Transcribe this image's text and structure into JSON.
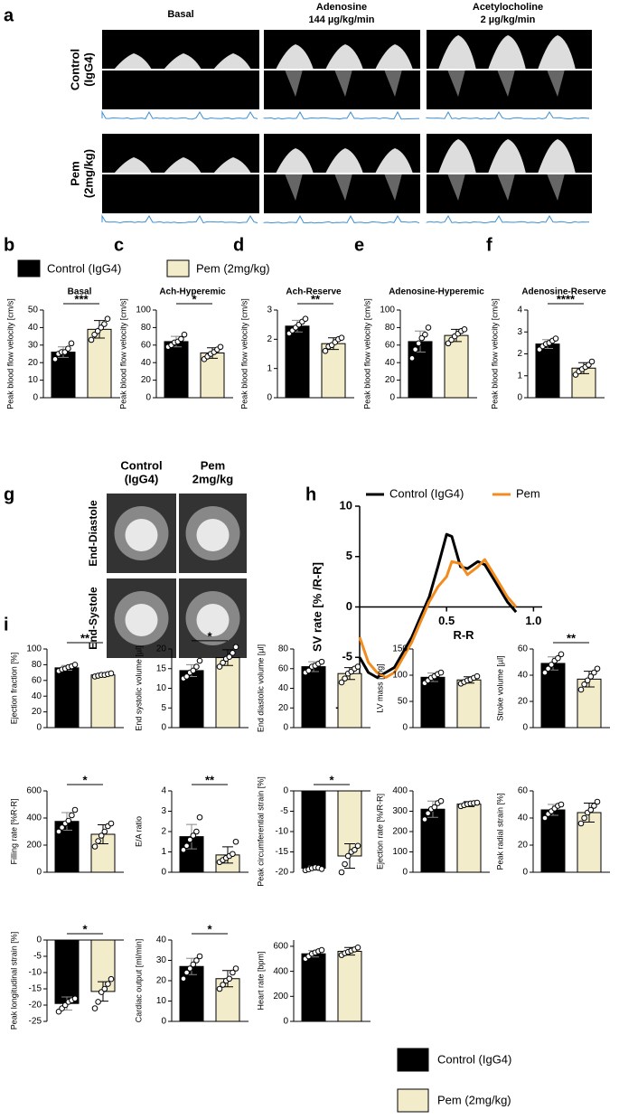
{
  "panels": [
    "a",
    "b",
    "c",
    "d",
    "e",
    "f",
    "g",
    "h",
    "i"
  ],
  "panel_a": {
    "columns": [
      [
        "Basal"
      ],
      [
        "Adenosine",
        "144 µg/kg/min"
      ],
      [
        "Acetylocholine",
        "2 µg/kg/min"
      ]
    ],
    "rows": [
      [
        "Control",
        "(IgG4)"
      ],
      [
        "Pem",
        "(2mg/kg)"
      ]
    ]
  },
  "panel_g": {
    "columns": [
      [
        "Control",
        "(IgG4)"
      ],
      [
        "Pem",
        "2mg/kg"
      ]
    ],
    "rows": [
      "End-Diastole",
      "End-Systole"
    ]
  },
  "legend": {
    "items": [
      {
        "name": "Control (IgG4)",
        "color": "#000000"
      },
      {
        "name": "Pem (2mg/kg)",
        "color": "#f3ecca"
      }
    ]
  },
  "chart_data": [
    {
      "type": "bar",
      "title": "Basal",
      "ylabel": "Peak blood flow velocity [cm/s]",
      "values": [
        26,
        39
      ],
      "errors": [
        3,
        5
      ],
      "points": [
        [
          22,
          25,
          26,
          26,
          28,
          31
        ],
        [
          33,
          36,
          38,
          40,
          42,
          45
        ]
      ],
      "significance": "***",
      "ylim": [
        0,
        50
      ],
      "yticks": [
        0,
        10,
        20,
        30,
        40,
        50
      ]
    },
    {
      "type": "bar",
      "title": "Ach-Hyperemic",
      "ylabel": "Peak blood flow velocity [cm/s]",
      "values": [
        64,
        51
      ],
      "errors": [
        6,
        6
      ],
      "points": [
        [
          58,
          60,
          63,
          64,
          67,
          72
        ],
        [
          44,
          47,
          50,
          52,
          55,
          58
        ]
      ],
      "significance": "*",
      "ylim": [
        0,
        100
      ],
      "yticks": [
        0,
        20,
        40,
        60,
        80,
        100
      ]
    },
    {
      "type": "bar",
      "title": "Ach-Reserve",
      "ylabel": "Peak blood flow velocity [cm/s]",
      "values": [
        2.45,
        1.85
      ],
      "errors": [
        0.2,
        0.2
      ],
      "points": [
        [
          2.2,
          2.3,
          2.4,
          2.5,
          2.6,
          2.7
        ],
        [
          1.6,
          1.75,
          1.8,
          1.9,
          2.0,
          2.05
        ]
      ],
      "significance": "**",
      "ylim": [
        0,
        3
      ],
      "yticks": [
        0,
        1,
        2,
        3
      ]
    },
    {
      "type": "bar",
      "title": "Adenosine-Hyperemic",
      "ylabel": "Peak blood flow velocity [cm/s]",
      "values": [
        64,
        71
      ],
      "errors": [
        12,
        7
      ],
      "points": [
        [
          45,
          55,
          62,
          68,
          72,
          80
        ],
        [
          62,
          66,
          70,
          73,
          76,
          78
        ]
      ],
      "ylim": [
        0,
        100
      ],
      "yticks": [
        0,
        20,
        40,
        60,
        80,
        100
      ]
    },
    {
      "type": "bar",
      "title": "Adenosine-Reserve",
      "ylabel": "Peak blood flow velocity [cm/s]",
      "values": [
        2.45,
        1.35
      ],
      "errors": [
        0.2,
        0.25
      ],
      "points": [
        [
          2.2,
          2.35,
          2.45,
          2.5,
          2.6,
          2.7
        ],
        [
          1.05,
          1.2,
          1.3,
          1.4,
          1.5,
          1.65
        ]
      ],
      "significance": "****",
      "ylim": [
        0,
        4
      ],
      "yticks": [
        0,
        1,
        2,
        3,
        4
      ]
    },
    {
      "type": "line",
      "ylabel": "SV rate [% /R-R]",
      "xlabel": "R-R",
      "x": [
        0,
        0.05,
        0.1,
        0.15,
        0.2,
        0.25,
        0.3,
        0.35,
        0.4,
        0.45,
        0.5,
        0.53,
        0.58,
        0.62,
        0.68,
        0.72,
        0.78,
        0.85,
        0.9
      ],
      "series": [
        {
          "name": "Control (IgG4)",
          "color": "#000000",
          "values": [
            -5,
            -6.5,
            -7,
            -6.5,
            -6,
            -4.5,
            -3,
            -1,
            1,
            4,
            7.2,
            7,
            4,
            3.8,
            4.5,
            4.2,
            2.5,
            0.5,
            -0.5
          ]
        },
        {
          "name": "Pem",
          "color": "#f28c1e",
          "values": [
            -3,
            -5.5,
            -6.5,
            -7,
            -6.5,
            -5,
            -3.5,
            -1.5,
            0.5,
            2,
            3,
            4.5,
            4.3,
            3.2,
            4,
            4.7,
            3,
            1,
            0
          ]
        }
      ],
      "xlim": [
        0,
        1.05
      ],
      "xticks": [
        0.5,
        {
          "value": 1,
          "label": "1.0"
        }
      ],
      "ylim": [
        -10,
        10
      ],
      "yticks": [
        -10,
        -5,
        0,
        5,
        10
      ]
    },
    {
      "type": "bar",
      "ylabel": "Ejection fraction [%]",
      "values": [
        76,
        67
      ],
      "errors": [
        3,
        2
      ],
      "points": [
        [
          72,
          74,
          75,
          77,
          78,
          80
        ],
        [
          65,
          66,
          67,
          67,
          68,
          69
        ]
      ],
      "significance": "**",
      "ylim": [
        0,
        100
      ],
      "yticks": [
        0,
        20,
        40,
        60,
        80,
        100
      ]
    },
    {
      "type": "bar",
      "ylabel": "End systolic volume [µl]",
      "values": [
        14.5,
        17.8
      ],
      "errors": [
        1.5,
        2
      ],
      "points": [
        [
          12.5,
          13,
          14,
          14.5,
          15.5,
          17
        ],
        [
          15.5,
          16.5,
          17.5,
          18,
          19,
          20.5
        ]
      ],
      "significance": "*",
      "ylim": [
        0,
        20
      ],
      "yticks": [
        0,
        5,
        10,
        15,
        20
      ]
    },
    {
      "type": "bar",
      "ylabel": "End diastolic volume [µl]",
      "values": [
        62,
        55
      ],
      "errors": [
        5,
        6
      ],
      "points": [
        [
          56,
          58,
          62,
          63,
          65,
          67
        ],
        [
          46,
          50,
          55,
          57,
          60,
          62
        ]
      ],
      "ylim": [
        0,
        80
      ],
      "yticks": [
        0,
        20,
        40,
        60,
        80
      ]
    },
    {
      "type": "bar",
      "ylabel": "LV mass [mg]",
      "values": [
        96,
        91
      ],
      "errors": [
        8,
        6
      ],
      "points": [
        [
          85,
          90,
          95,
          98,
          102,
          105
        ],
        [
          84,
          87,
          90,
          92,
          95,
          98
        ]
      ],
      "ylim": [
        0,
        150
      ],
      "yticks": [
        0,
        50,
        100,
        150
      ]
    },
    {
      "type": "bar",
      "ylabel": "Stroke volume [µl]",
      "values": [
        49,
        37
      ],
      "errors": [
        5,
        6
      ],
      "points": [
        [
          42,
          45,
          48,
          51,
          53,
          56
        ],
        [
          29,
          33,
          36,
          39,
          42,
          45
        ]
      ],
      "significance": "**",
      "ylim": [
        0,
        60
      ],
      "yticks": [
        0,
        20,
        40,
        60
      ]
    },
    {
      "type": "bar",
      "ylabel": "Filling rate [%R-R]",
      "values": [
        375,
        280
      ],
      "errors": [
        65,
        70
      ],
      "points": [
        [
          300,
          330,
          360,
          380,
          420,
          460
        ],
        [
          190,
          230,
          270,
          300,
          340,
          360
        ]
      ],
      "significance": "*",
      "ylim": [
        0,
        600
      ],
      "yticks": [
        0,
        200,
        400,
        600
      ]
    },
    {
      "type": "bar",
      "ylabel": "E/A ratio",
      "values": [
        1.75,
        0.85
      ],
      "errors": [
        0.6,
        0.4
      ],
      "points": [
        [
          1.1,
          1.3,
          1.6,
          1.8,
          2.0,
          2.7
        ],
        [
          0.5,
          0.6,
          0.7,
          0.8,
          0.9,
          1.5
        ]
      ],
      "significance": "**",
      "ylim": [
        0,
        4
      ],
      "yticks": [
        0,
        1,
        2,
        3,
        4
      ]
    },
    {
      "type": "bar",
      "ylabel": "Peak circumferential strain [%]",
      "values": [
        -19,
        -16
      ],
      "errors": [
        0.5,
        3
      ],
      "points": [
        [
          -19.5,
          -19.3,
          -19,
          -18.8,
          -18.9,
          -19.2
        ],
        [
          -20,
          -18,
          -16,
          -15,
          -14.5,
          -13.5
        ]
      ],
      "significance": "*",
      "ylim": [
        -20,
        0
      ],
      "yticks": [
        -20,
        -15,
        -10,
        -5,
        0
      ]
    },
    {
      "type": "bar",
      "ylabel": "Ejection rate [%/R-R]",
      "values": [
        310,
        335
      ],
      "errors": [
        40,
        12
      ],
      "points": [
        [
          260,
          290,
          310,
          320,
          340,
          350
        ],
        [
          325,
          330,
          335,
          338,
          340,
          342
        ]
      ],
      "ylim": [
        0,
        400
      ],
      "yticks": [
        0,
        100,
        200,
        300,
        400
      ]
    },
    {
      "type": "bar",
      "ylabel": "Peak radial strain [%]",
      "values": [
        46,
        44
      ],
      "errors": [
        4,
        7
      ],
      "points": [
        [
          40,
          43,
          45,
          47,
          49,
          50
        ],
        [
          36,
          40,
          44,
          46,
          49,
          52
        ]
      ],
      "ylim": [
        0,
        60
      ],
      "yticks": [
        0,
        20,
        40,
        60
      ]
    },
    {
      "type": "bar",
      "ylabel": "Peak longitudinal strain [%]",
      "values": [
        -19.5,
        -15.8
      ],
      "errors": [
        2,
        3
      ],
      "points": [
        [
          -22,
          -21,
          -20,
          -19,
          -18.5,
          -18
        ],
        [
          -21,
          -19,
          -16,
          -15,
          -13.5,
          -12
        ]
      ],
      "significance": "*",
      "ylim": [
        -25,
        0
      ],
      "yticks": [
        -25,
        -20,
        -15,
        -10,
        -5,
        0
      ]
    },
    {
      "type": "bar",
      "ylabel": "Cardiac output [ml/min]",
      "values": [
        27,
        21
      ],
      "errors": [
        4,
        4
      ],
      "points": [
        [
          21,
          24,
          26,
          28,
          30,
          32
        ],
        [
          16,
          18,
          20,
          21,
          24,
          26
        ]
      ],
      "significance": "*",
      "ylim": [
        0,
        40
      ],
      "yticks": [
        0,
        10,
        20,
        30,
        40
      ]
    },
    {
      "type": "bar",
      "ylabel": "Heart rate [bpm]",
      "values": [
        540,
        560
      ],
      "errors": [
        25,
        30
      ],
      "points": [
        [
          500,
          520,
          540,
          550,
          560,
          570
        ],
        [
          530,
          545,
          555,
          565,
          575,
          590
        ]
      ],
      "ylim": [
        0,
        650
      ],
      "yticks": [
        0,
        200,
        400,
        600
      ]
    }
  ]
}
